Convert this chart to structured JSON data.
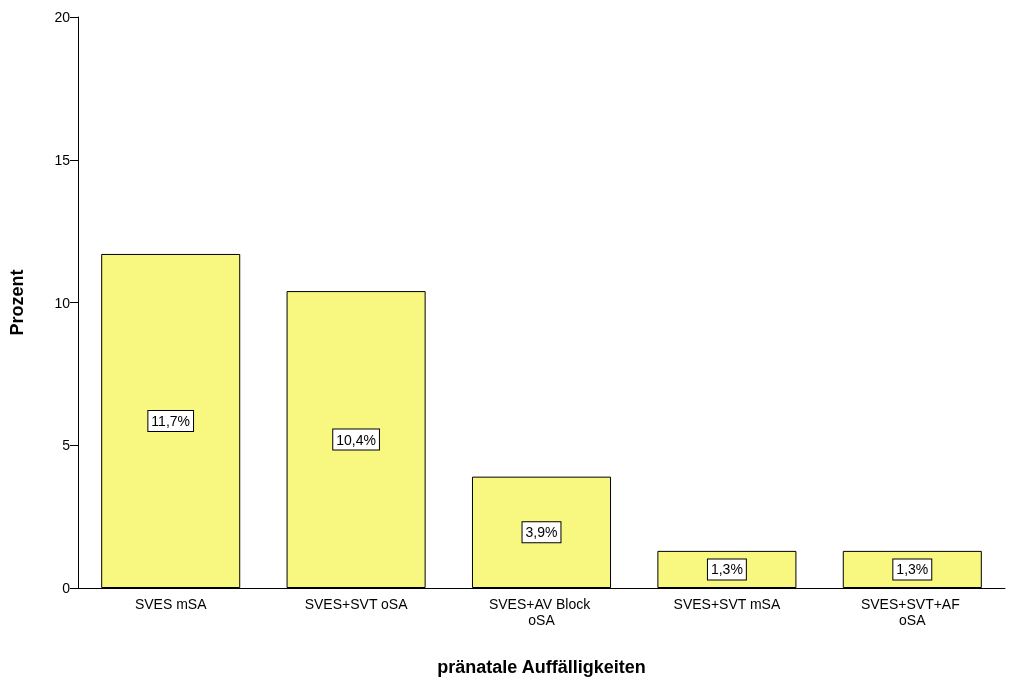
{
  "chart_data": {
    "type": "bar",
    "xlabel": "pränatale Auffälligkeiten",
    "ylabel": "Prozent",
    "categories": [
      "SVES mSA",
      "SVES+SVT oSA",
      "SVES+AV Block oSA",
      "SVES+SVT mSA",
      "SVES+SVT+AF oSA"
    ],
    "values": [
      11.7,
      10.4,
      3.9,
      1.3,
      1.3
    ],
    "value_labels": [
      "11,7%",
      "10,4%",
      "3,9%",
      "1,3%",
      "1,3%"
    ],
    "color": "#f8f77f",
    "ylim": [
      0,
      20
    ],
    "yticks": [
      0,
      5,
      10,
      15,
      20
    ],
    "grid": false
  }
}
